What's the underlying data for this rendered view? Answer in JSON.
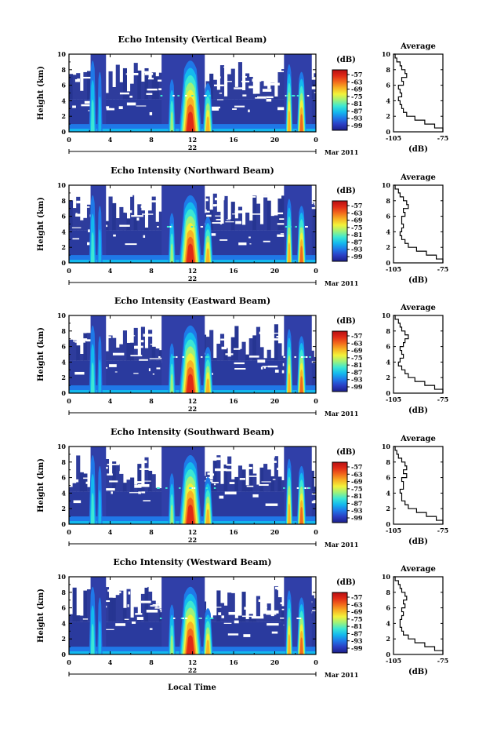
{
  "chart_data": {
    "type": "heatmap",
    "x_ticks": [
      "0",
      "4",
      "8",
      "12",
      "16",
      "20",
      "0"
    ],
    "x_range": [
      0,
      24
    ],
    "y_ticks": [
      "0",
      "2",
      "4",
      "6",
      "8",
      "10"
    ],
    "y_range": [
      0,
      10
    ],
    "ylabel": "Height (km)",
    "date_label": "22",
    "month_label": "Mar 2011",
    "xlabel": "Local Time",
    "colorbar": {
      "unit": "(dB)",
      "ticks": [
        "-57",
        "-63",
        "-69",
        "-75",
        "-81",
        "-87",
        "-93",
        "-99"
      ],
      "colors": [
        "#1c1f8a",
        "#2a3fc4",
        "#1f78e8",
        "#14b9ee",
        "#3ce7d4",
        "#9ef27a",
        "#f2f23a",
        "#f7b324",
        "#f26a1c",
        "#e02a16",
        "#b80f12"
      ]
    },
    "average": {
      "title": "Average",
      "xlabel": "(dB)",
      "x_ticks": [
        "-105",
        "-75"
      ],
      "x_range": [
        -105,
        -75
      ],
      "y_ticks": [
        "0",
        "2",
        "4",
        "6",
        "8",
        "10"
      ],
      "y_range": [
        0,
        10
      ]
    },
    "panels": [
      {
        "title": "Echo Intensity (Vertical Beam)",
        "echo_level": 1.0,
        "average_profile": [
          [
            -75,
            0
          ],
          [
            -80,
            0.5
          ],
          [
            -86,
            1
          ],
          [
            -92,
            1.5
          ],
          [
            -97,
            2
          ],
          [
            -99,
            2.5
          ],
          [
            -100,
            3
          ],
          [
            -101,
            3.5
          ],
          [
            -102,
            4
          ],
          [
            -100,
            4.5
          ],
          [
            -101,
            5
          ],
          [
            -102,
            5.5
          ],
          [
            -99,
            6
          ],
          [
            -100,
            6.5
          ],
          [
            -97,
            7
          ],
          [
            -98,
            7.5
          ],
          [
            -100,
            8
          ],
          [
            -101,
            8.5
          ],
          [
            -103,
            9
          ],
          [
            -104,
            9.5
          ],
          [
            -105,
            10
          ]
        ]
      },
      {
        "title": "Echo Intensity (Northward Beam)",
        "echo_level": 0.95,
        "average_profile": [
          [
            -75,
            0
          ],
          [
            -79,
            0.5
          ],
          [
            -85,
            1
          ],
          [
            -91,
            1.5
          ],
          [
            -96,
            2
          ],
          [
            -98,
            2.5
          ],
          [
            -100,
            3
          ],
          [
            -101,
            3.5
          ],
          [
            -100,
            4
          ],
          [
            -99,
            4.5
          ],
          [
            -100,
            5
          ],
          [
            -100,
            5.5
          ],
          [
            -98,
            6
          ],
          [
            -99,
            6.5
          ],
          [
            -96,
            7
          ],
          [
            -97,
            7.5
          ],
          [
            -99,
            8
          ],
          [
            -101,
            8.5
          ],
          [
            -102,
            9
          ],
          [
            -104,
            9.5
          ],
          [
            -105,
            10
          ]
        ]
      },
      {
        "title": "Echo Intensity (Eastward Beam)",
        "echo_level": 0.95,
        "average_profile": [
          [
            -75,
            0
          ],
          [
            -80,
            0.5
          ],
          [
            -86,
            1
          ],
          [
            -92,
            1.5
          ],
          [
            -96,
            2
          ],
          [
            -98,
            2.5
          ],
          [
            -100,
            3
          ],
          [
            -102,
            3.5
          ],
          [
            -101,
            4
          ],
          [
            -99,
            4.5
          ],
          [
            -100,
            5
          ],
          [
            -101,
            5.5
          ],
          [
            -99,
            6
          ],
          [
            -98,
            6.5
          ],
          [
            -96,
            7
          ],
          [
            -98,
            7.5
          ],
          [
            -100,
            8
          ],
          [
            -101,
            8.5
          ],
          [
            -102,
            9
          ],
          [
            -104,
            9.5
          ],
          [
            -105,
            10
          ]
        ]
      },
      {
        "title": "Echo Intensity (Southward Beam)",
        "echo_level": 0.97,
        "average_profile": [
          [
            -75,
            0
          ],
          [
            -79,
            0.5
          ],
          [
            -85,
            1
          ],
          [
            -91,
            1.5
          ],
          [
            -96,
            2
          ],
          [
            -98,
            2.5
          ],
          [
            -100,
            3
          ],
          [
            -100,
            3.5
          ],
          [
            -101,
            4
          ],
          [
            -99,
            4.5
          ],
          [
            -99,
            5
          ],
          [
            -100,
            5.5
          ],
          [
            -97,
            6
          ],
          [
            -99,
            6.5
          ],
          [
            -97,
            7
          ],
          [
            -98,
            7.5
          ],
          [
            -100,
            8
          ],
          [
            -102,
            8.5
          ],
          [
            -103,
            9
          ],
          [
            -104,
            9.5
          ],
          [
            -105,
            10
          ]
        ]
      },
      {
        "title": "Echo Intensity (Westward Beam)",
        "echo_level": 0.95,
        "average_profile": [
          [
            -75,
            0
          ],
          [
            -80,
            0.5
          ],
          [
            -86,
            1
          ],
          [
            -92,
            1.5
          ],
          [
            -96,
            2
          ],
          [
            -99,
            2.5
          ],
          [
            -100,
            3
          ],
          [
            -101,
            3.5
          ],
          [
            -101,
            4
          ],
          [
            -100,
            4.5
          ],
          [
            -99,
            5
          ],
          [
            -100,
            5.5
          ],
          [
            -98,
            6
          ],
          [
            -99,
            6.5
          ],
          [
            -97,
            7
          ],
          [
            -98,
            7.5
          ],
          [
            -100,
            8
          ],
          [
            -101,
            8.5
          ],
          [
            -102,
            9
          ],
          [
            -104,
            9.5
          ],
          [
            -105,
            10
          ]
        ]
      }
    ]
  }
}
